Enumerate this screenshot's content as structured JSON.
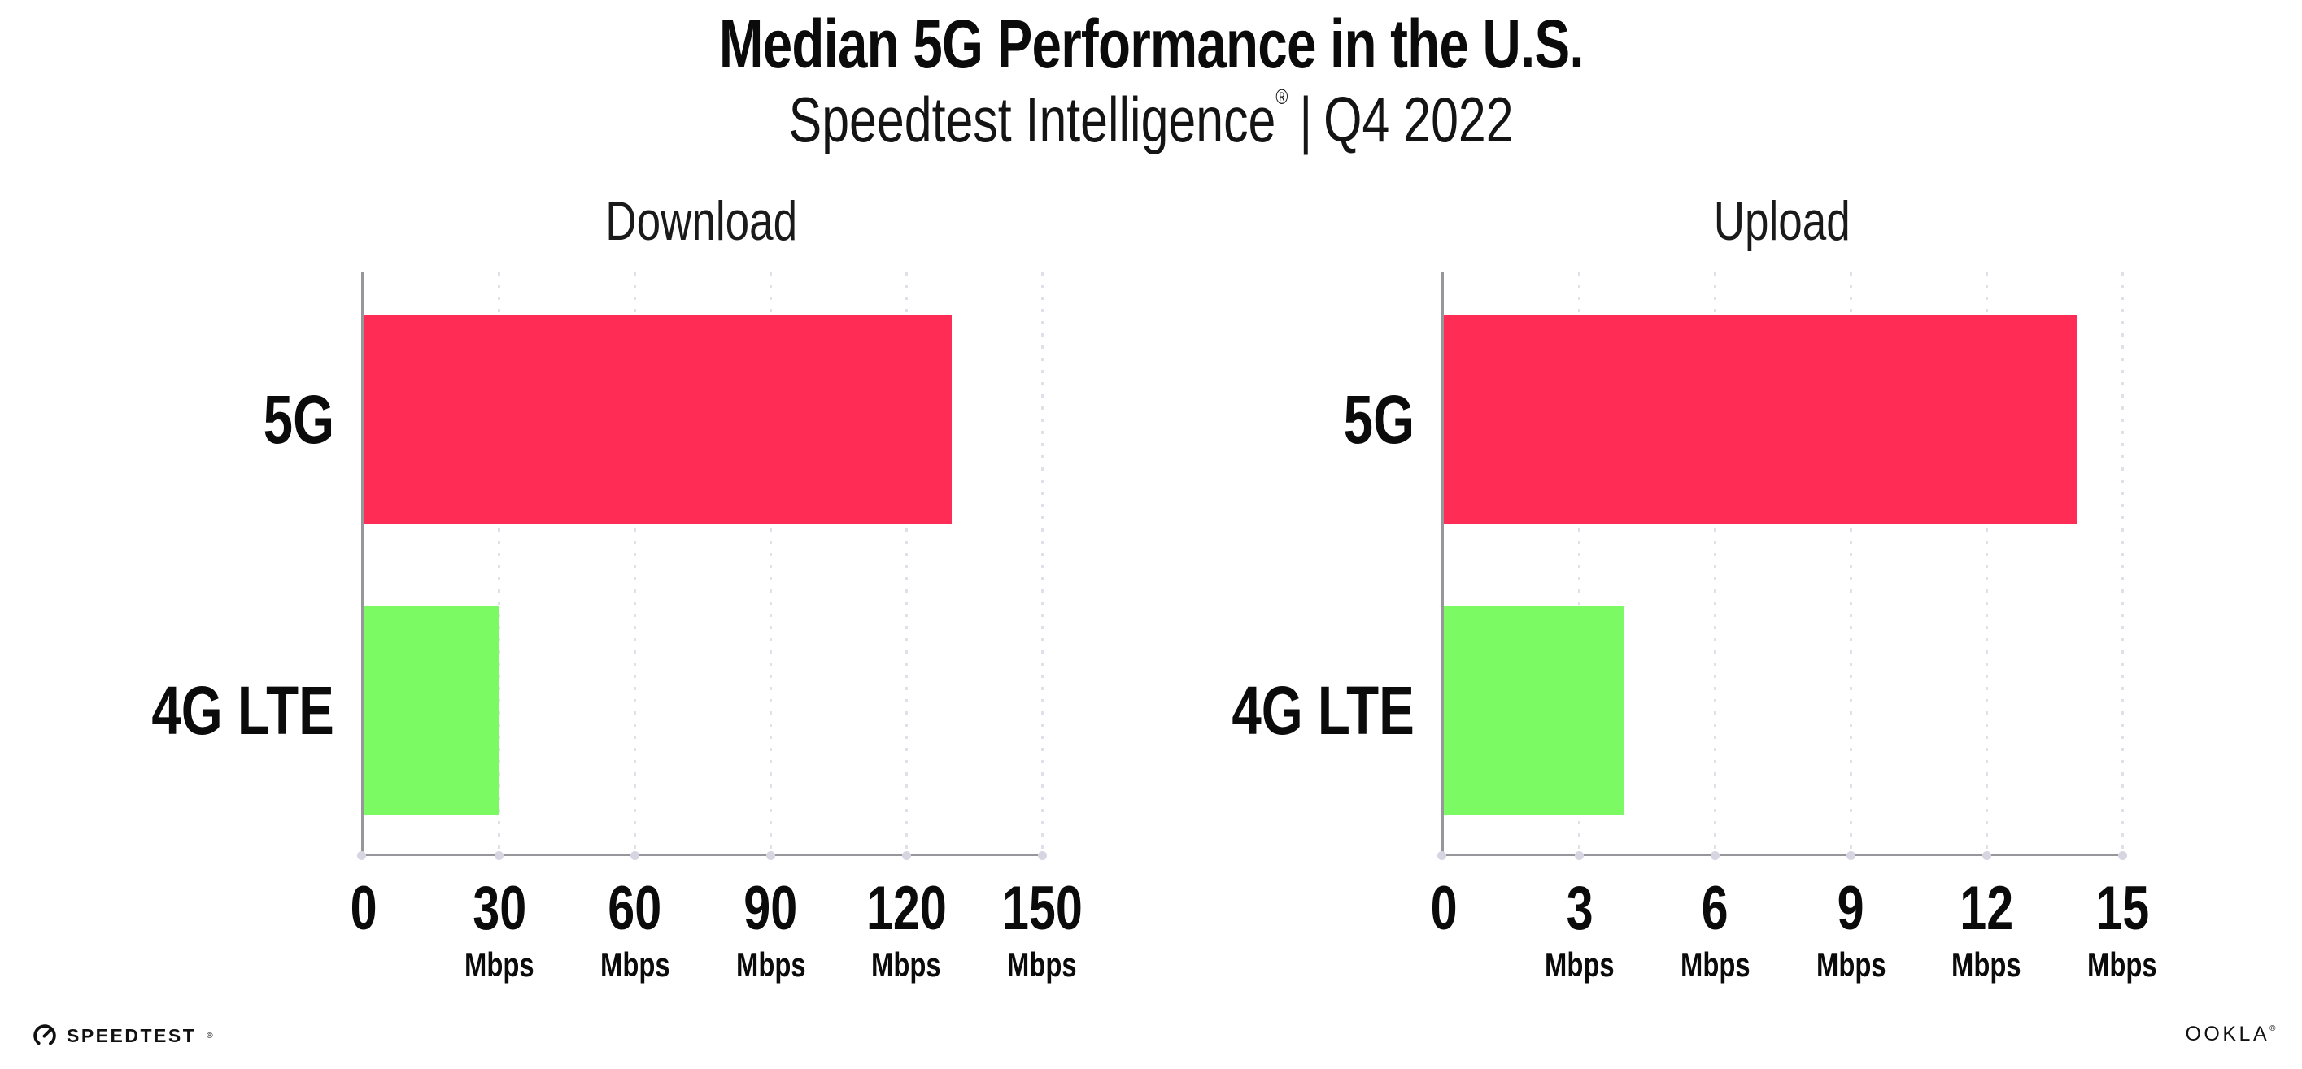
{
  "header": {
    "title": "Median 5G Performance in the U.S.",
    "subtitle_brand": "Speedtest Intelligence",
    "subtitle_reg": "®",
    "subtitle_divider": "|",
    "subtitle_period": "Q4 2022"
  },
  "colors": {
    "bar_5g": "#FF2D55",
    "bar_4g": "#7CFA63",
    "axis": "#96969B",
    "gridline": "#E0E0EA",
    "axis_tick_dot": "#D6D6E2",
    "text": "#0B0B0B"
  },
  "chart_data": [
    {
      "type": "bar",
      "orientation": "horizontal",
      "title": "Download",
      "categories": [
        "5G",
        "4G LTE"
      ],
      "values": [
        130,
        30
      ],
      "unit": "Mbps",
      "xlim": [
        0,
        150
      ],
      "tick_interval": 30,
      "grid": "vertical-dotted",
      "legend": "none",
      "bar_colors": [
        "#FF2D55",
        "#7CFA63"
      ],
      "ticks": [
        {
          "value": 0,
          "label": "0",
          "unit": ""
        },
        {
          "value": 30,
          "label": "30",
          "unit": "Mbps"
        },
        {
          "value": 60,
          "label": "60",
          "unit": "Mbps"
        },
        {
          "value": 90,
          "label": "90",
          "unit": "Mbps"
        },
        {
          "value": 120,
          "label": "120",
          "unit": "Mbps"
        },
        {
          "value": 150,
          "label": "150",
          "unit": "Mbps"
        }
      ]
    },
    {
      "type": "bar",
      "orientation": "horizontal",
      "title": "Upload",
      "categories": [
        "5G",
        "4G LTE"
      ],
      "values": [
        14,
        4
      ],
      "unit": "Mbps",
      "xlim": [
        0,
        15
      ],
      "tick_interval": 3,
      "grid": "vertical-dotted",
      "legend": "none",
      "bar_colors": [
        "#FF2D55",
        "#7CFA63"
      ],
      "ticks": [
        {
          "value": 0,
          "label": "0",
          "unit": ""
        },
        {
          "value": 3,
          "label": "3",
          "unit": "Mbps"
        },
        {
          "value": 6,
          "label": "6",
          "unit": "Mbps"
        },
        {
          "value": 9,
          "label": "9",
          "unit": "Mbps"
        },
        {
          "value": 12,
          "label": "12",
          "unit": "Mbps"
        },
        {
          "value": 15,
          "label": "15",
          "unit": "Mbps"
        }
      ]
    }
  ],
  "footer": {
    "speedtest_label": "SPEEDTEST",
    "speedtest_reg": "®",
    "ookla_label": "OOKLA",
    "ookla_reg": "®"
  }
}
